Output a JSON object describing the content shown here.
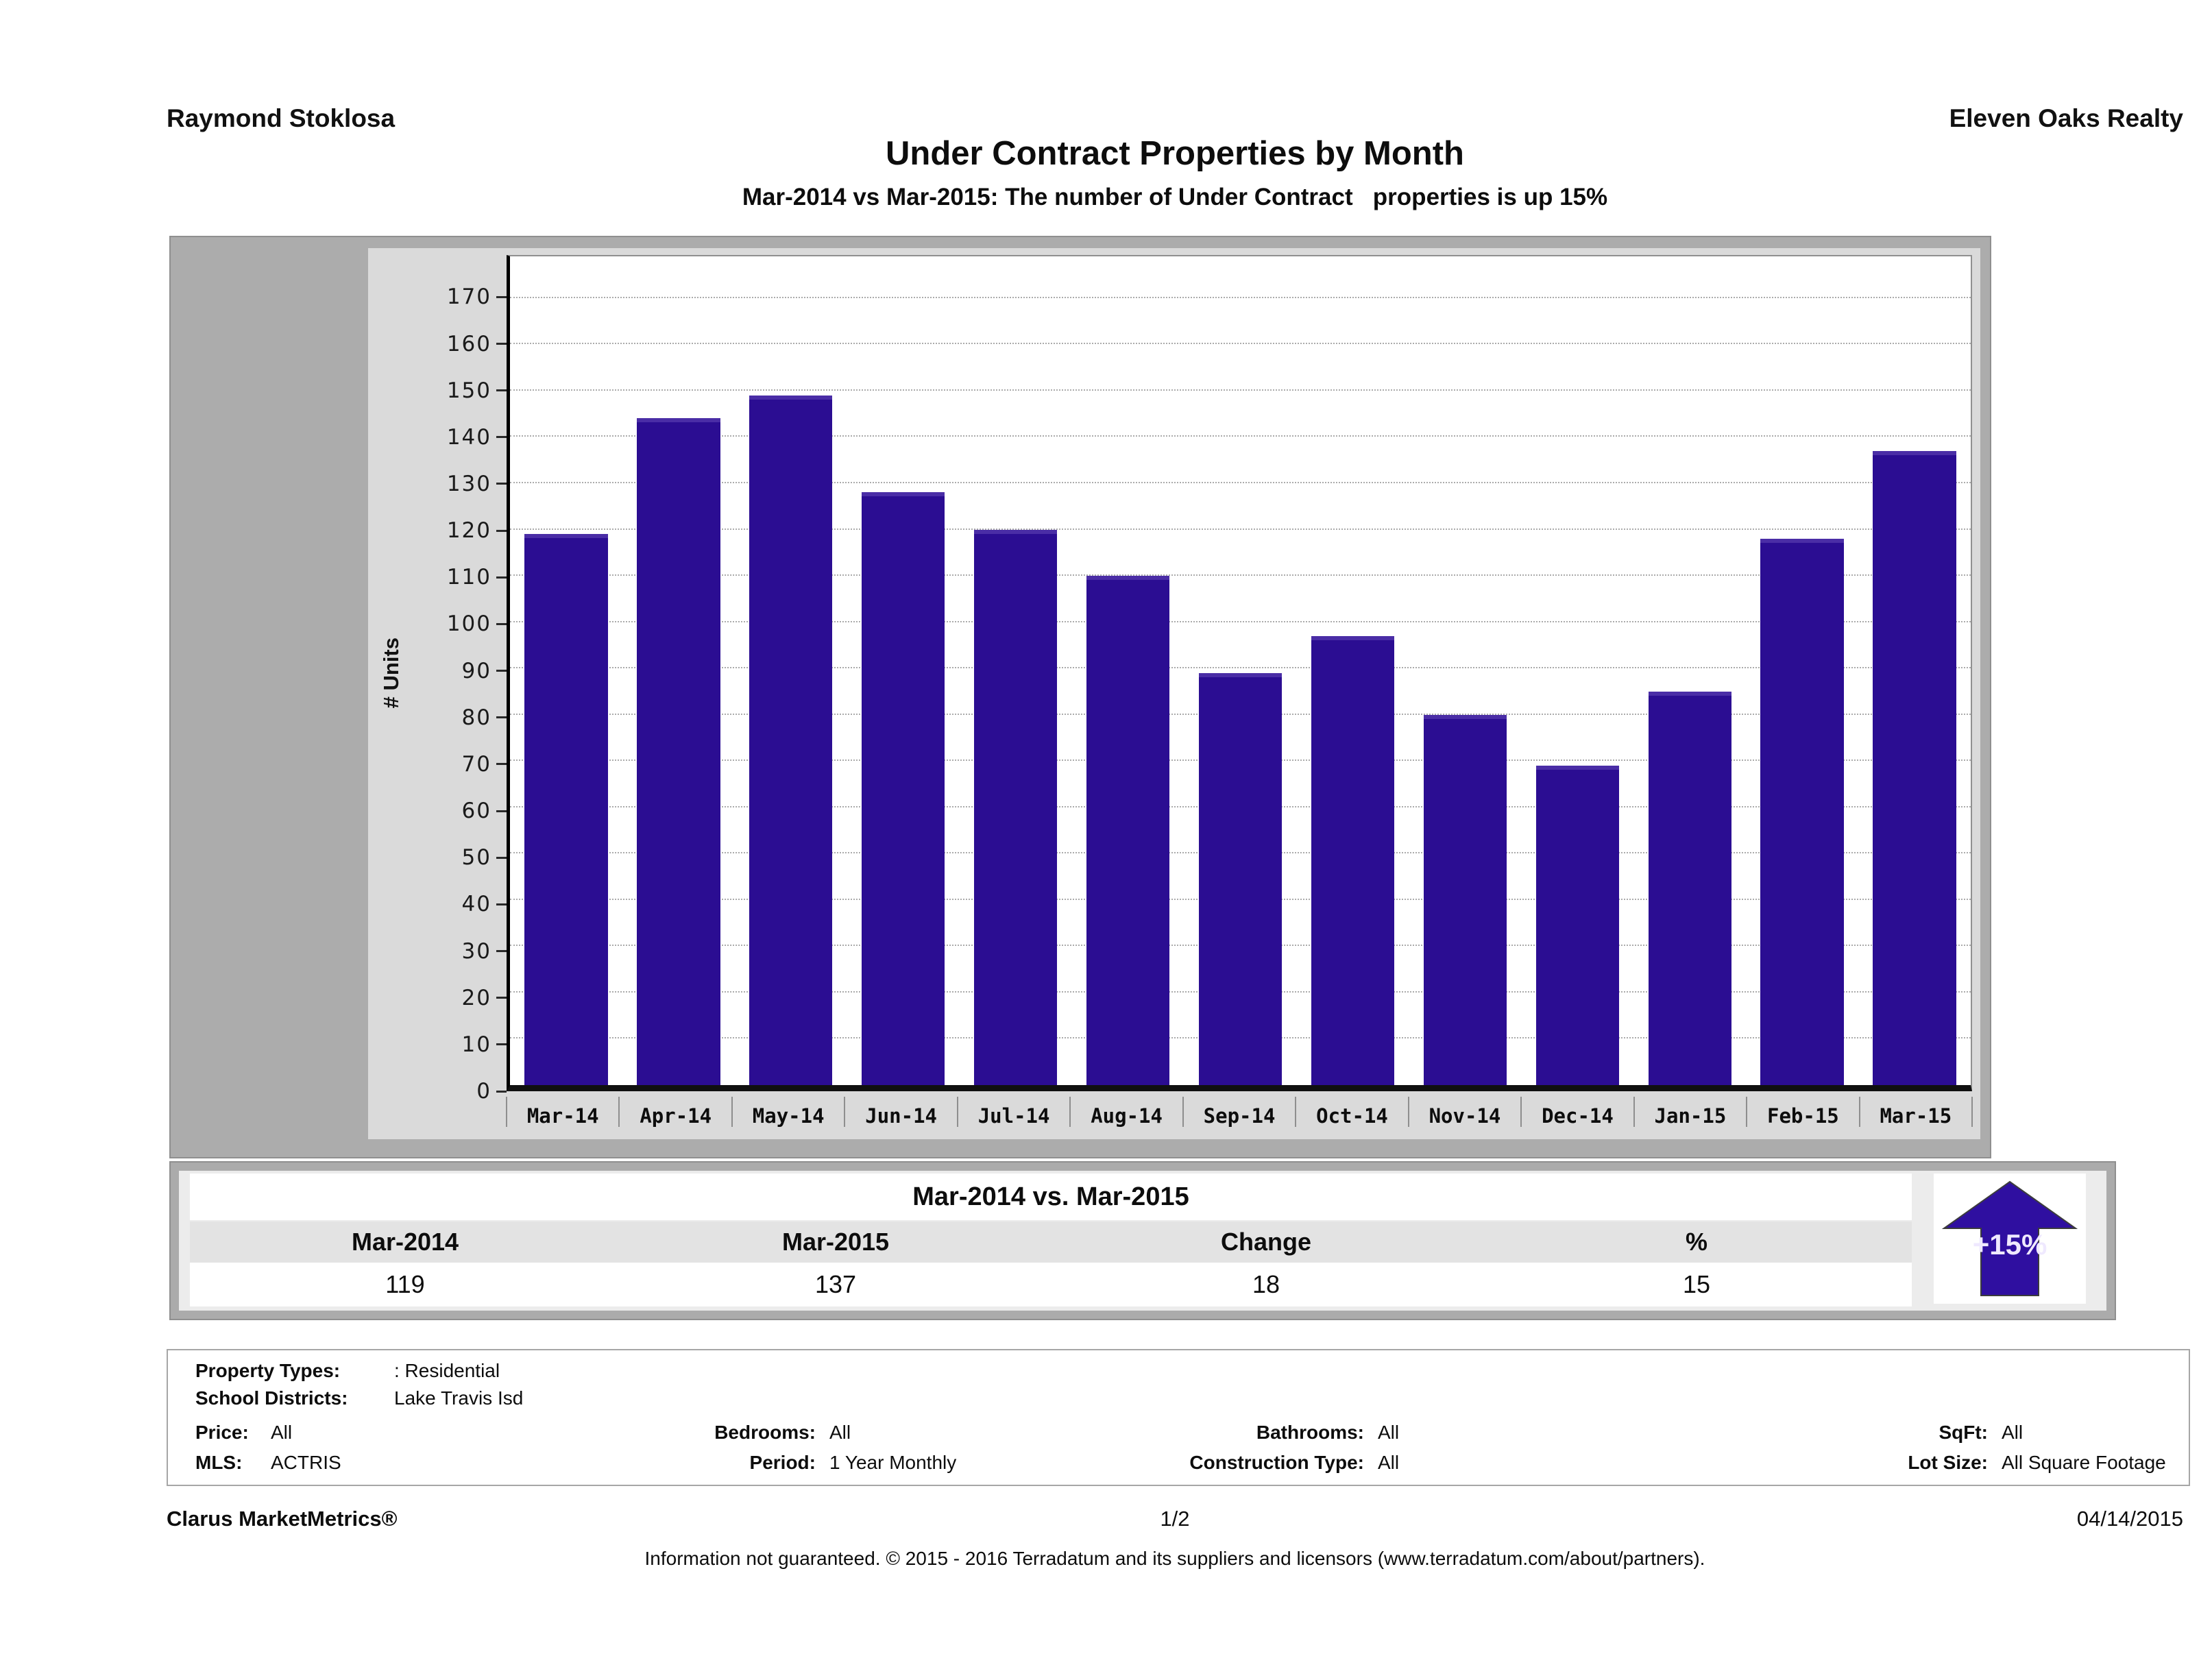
{
  "header": {
    "agent": "Raymond Stoklosa",
    "company": "Eleven Oaks Realty",
    "title": "Under Contract Properties by Month",
    "subtitle": "Mar-2014 vs Mar-2015: The number of Under Contract   properties is up 15%"
  },
  "chart_data": {
    "type": "bar",
    "title": "Under Contract Properties by Month",
    "categories": [
      "Mar-14",
      "Apr-14",
      "May-14",
      "Jun-14",
      "Jul-14",
      "Aug-14",
      "Sep-14",
      "Oct-14",
      "Nov-14",
      "Dec-14",
      "Jan-15",
      "Feb-15",
      "Mar-15"
    ],
    "values": [
      119,
      144,
      149,
      128,
      120,
      110,
      89,
      97,
      80,
      69,
      85,
      118,
      137
    ],
    "xlabel": "",
    "ylabel": "# Units",
    "ylim": [
      0,
      179
    ],
    "yticks": [
      0,
      10,
      20,
      30,
      40,
      50,
      60,
      70,
      80,
      90,
      100,
      110,
      120,
      130,
      140,
      150,
      160,
      170
    ],
    "grid": "horizontal-dotted",
    "legend": "none",
    "bar_color": "#2b0d92"
  },
  "summary": {
    "title": "Mar-2014 vs. Mar-2015",
    "columns": [
      "Mar-2014",
      "Mar-2015",
      "Change",
      "%"
    ],
    "values": [
      "119",
      "137",
      "18",
      "15"
    ],
    "badge_label": "+15%",
    "badge_direction": "up",
    "badge_color": "#2f0fa0"
  },
  "filters": {
    "property_types_label": "Property Types:",
    "property_types_value": ": Residential",
    "school_districts_label": "School Districts:",
    "school_districts_value": "Lake Travis Isd",
    "price_label": "Price:",
    "price_value": "All",
    "bedrooms_label": "Bedrooms:",
    "bedrooms_value": "All",
    "bathrooms_label": "Bathrooms:",
    "bathrooms_value": "All",
    "sqft_label": "SqFt:",
    "sqft_value": "All",
    "mls_label": "MLS:",
    "mls_value": "ACTRIS",
    "period_label": "Period:",
    "period_value": "1 Year Monthly",
    "construction_type_label": "Construction Type:",
    "construction_type_value": "All",
    "lot_size_label": "Lot Size:",
    "lot_size_value": "All Square Footage"
  },
  "footer": {
    "brand": "Clarus MarketMetrics®",
    "page_indicator": "1/2",
    "date": "04/14/2015",
    "disclaimer": "Information not guaranteed. © 2015 - 2016 Terradatum and its suppliers and licensors (www.terradatum.com/about/partners)."
  }
}
